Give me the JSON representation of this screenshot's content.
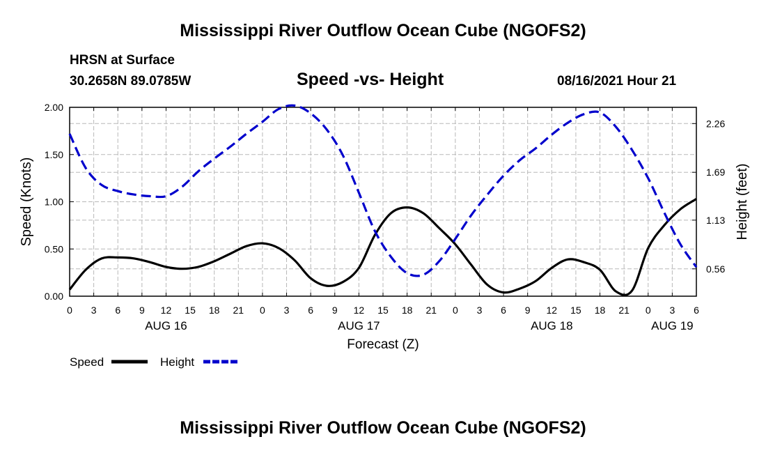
{
  "page": {
    "title_top": "Mississippi River Outflow Ocean Cube (NGOFS2)",
    "title_bottom": "Mississippi River Outflow Ocean Cube (NGOFS2)",
    "station_line1": "HRSN at Surface",
    "station_line2": "30.2658N  89.0785W",
    "subtitle": "Speed -vs- Height",
    "timestamp": "08/16/2021 Hour 21"
  },
  "chart_data": {
    "type": "line",
    "title": "Speed -vs- Height",
    "xlabel": "Forecast (Z)",
    "ylabel": "Speed (Knots)",
    "y2label": "Height (feet)",
    "xlim": [
      0,
      78
    ],
    "ylim": [
      0,
      2.0
    ],
    "y2lim": [
      0.24,
      2.45
    ],
    "x_ticks": [
      0,
      3,
      6,
      9,
      12,
      15,
      18,
      21,
      24,
      27,
      30,
      33,
      36,
      39,
      42,
      45,
      48,
      51,
      54,
      57,
      60,
      63,
      66,
      69,
      72,
      75,
      78
    ],
    "x_tick_labels": [
      "0",
      "3",
      "6",
      "9",
      "12",
      "15",
      "18",
      "21",
      "0",
      "3",
      "6",
      "9",
      "12",
      "15",
      "18",
      "21",
      "0",
      "3",
      "6",
      "9",
      "12",
      "15",
      "18",
      "21",
      "0",
      "3",
      "6"
    ],
    "day_labels": [
      {
        "x": 12,
        "label": "AUG 16"
      },
      {
        "x": 36,
        "label": "AUG 17"
      },
      {
        "x": 60,
        "label": "AUG 18"
      },
      {
        "x": 75,
        "label": "AUG 19"
      }
    ],
    "y_ticks": [
      0,
      0.5,
      1.0,
      1.5,
      2.0
    ],
    "y_tick_labels": [
      "0.00",
      "0.50",
      "1.00",
      "1.50",
      "2.00"
    ],
    "y2_ticks": [
      0.56,
      1.13,
      1.69,
      2.26
    ],
    "y2_tick_labels": [
      "0.56",
      "1.13",
      "1.69",
      "2.26"
    ],
    "grid": true,
    "legend": {
      "position": "bottom-left",
      "items": [
        {
          "name": "Speed",
          "color": "#000000",
          "dash": "solid"
        },
        {
          "name": "Height",
          "color": "#0000cc",
          "dash": "dashed"
        }
      ]
    },
    "series": [
      {
        "name": "Speed",
        "axis": "left",
        "color": "#000000",
        "x": [
          0,
          2,
          4,
          6,
          8,
          10,
          12,
          14,
          16,
          18,
          20,
          22,
          24,
          26,
          28,
          30,
          32,
          34,
          36,
          38,
          40,
          42,
          44,
          46,
          48,
          50,
          52,
          54,
          56,
          58,
          60,
          62,
          64,
          66,
          68,
          70,
          72,
          74,
          76,
          78
        ],
        "values": [
          0.07,
          0.28,
          0.4,
          0.41,
          0.4,
          0.36,
          0.31,
          0.29,
          0.31,
          0.37,
          0.45,
          0.53,
          0.56,
          0.51,
          0.38,
          0.19,
          0.11,
          0.15,
          0.3,
          0.65,
          0.88,
          0.94,
          0.88,
          0.72,
          0.55,
          0.33,
          0.12,
          0.04,
          0.08,
          0.16,
          0.3,
          0.39,
          0.36,
          0.28,
          0.05,
          0.06,
          0.51,
          0.75,
          0.92,
          1.03
        ]
      },
      {
        "name": "Height",
        "axis": "right",
        "color": "#0000cc",
        "x": [
          0,
          2,
          4,
          6,
          8,
          10,
          12,
          14,
          16,
          18,
          20,
          22,
          24,
          26,
          28,
          30,
          32,
          34,
          36,
          38,
          40,
          42,
          44,
          46,
          48,
          50,
          52,
          54,
          56,
          58,
          60,
          62,
          64,
          66,
          68,
          70,
          72,
          74,
          76,
          78
        ],
        "values": [
          2.14,
          1.74,
          1.54,
          1.47,
          1.43,
          1.41,
          1.41,
          1.52,
          1.7,
          1.85,
          1.99,
          2.14,
          2.28,
          2.43,
          2.47,
          2.38,
          2.19,
          1.89,
          1.45,
          1.0,
          0.7,
          0.51,
          0.49,
          0.65,
          0.91,
          1.19,
          1.43,
          1.65,
          1.83,
          1.97,
          2.13,
          2.27,
          2.37,
          2.39,
          2.22,
          1.95,
          1.62,
          1.22,
          0.85,
          0.58
        ]
      }
    ]
  }
}
